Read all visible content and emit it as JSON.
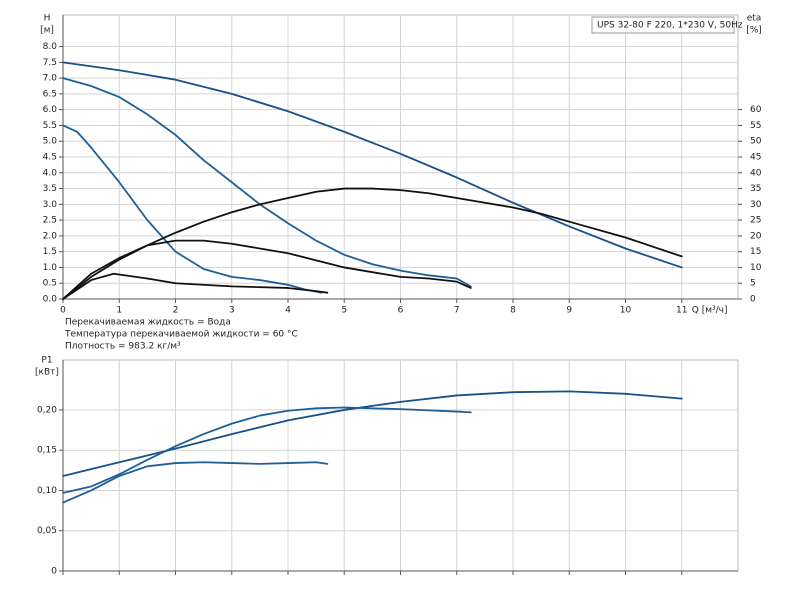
{
  "chart_data": [
    {
      "type": "line",
      "title": "UPS 32-80 F 220, 1*230 V, 50Hz",
      "y_label": "H",
      "y_unit": "[м]",
      "y2_label": "eta",
      "y2_unit": "[%]",
      "x_label": "Q [м³/ч]",
      "annotations": [
        "Перекачиваемая жидкость = Вода",
        "Температура перекачиваемой жидкости = 60 °C",
        "Плотность = 983.2 кг/м³"
      ],
      "xlim": [
        0,
        12
      ],
      "xticks": [
        0,
        1,
        2,
        3,
        4,
        5,
        6,
        7,
        8,
        9,
        10,
        11
      ],
      "ylim": [
        0,
        9
      ],
      "yticks": [
        {
          "value": 0,
          "label": "0.0"
        },
        0.5,
        {
          "value": 1,
          "label": "1.0"
        },
        1.5,
        {
          "value": 2,
          "label": "2.0"
        },
        2.5,
        {
          "value": 3,
          "label": "3.0"
        },
        3.5,
        {
          "value": 4,
          "label": "4.0"
        },
        4.5,
        {
          "value": 5,
          "label": "5.0"
        },
        5.5,
        {
          "value": 6,
          "label": "6.0"
        },
        6.5,
        {
          "value": 7,
          "label": "7.0"
        },
        7.5,
        {
          "value": 8,
          "label": "8.0"
        }
      ],
      "y2lim": [
        0,
        90
      ],
      "y2ticks": [
        0,
        5,
        10,
        15,
        20,
        25,
        30,
        35,
        40,
        45,
        50,
        55,
        60
      ],
      "grid": true,
      "series": [
        {
          "color": "#1b4f8a",
          "x": [
            0,
            1,
            2,
            3,
            4,
            5,
            6,
            7,
            8,
            9,
            10,
            11
          ],
          "values": [
            7.5,
            7.25,
            6.95,
            6.5,
            5.95,
            5.3,
            4.6,
            3.85,
            3.05,
            2.3,
            1.6,
            1.0
          ]
        },
        {
          "color": "#1f5f96",
          "x": [
            0,
            0.5,
            1,
            1.5,
            2,
            2.5,
            3,
            3.5,
            4,
            4.5,
            5,
            5.5,
            6,
            6.5,
            7,
            7.25
          ],
          "values": [
            7.0,
            6.75,
            6.4,
            5.85,
            5.2,
            4.4,
            3.7,
            3.0,
            2.4,
            1.85,
            1.4,
            1.1,
            0.9,
            0.75,
            0.65,
            0.4
          ]
        },
        {
          "color": "#1f5f96",
          "x": [
            0,
            0.25,
            0.5,
            1,
            1.5,
            2,
            2.5,
            3,
            3.5,
            4,
            4.3,
            4.6
          ],
          "values": [
            5.5,
            5.3,
            4.8,
            3.7,
            2.5,
            1.5,
            0.95,
            0.7,
            0.6,
            0.45,
            0.3,
            0.2
          ]
        },
        {
          "color": "#111111",
          "axis": "y2",
          "x": [
            0,
            0.5,
            1,
            1.5,
            2,
            2.5,
            3,
            3.5,
            4,
            4.5,
            5,
            5.5,
            6,
            6.5,
            7,
            7.5,
            8,
            8.5,
            9,
            10,
            11
          ],
          "values": [
            0,
            7,
            12.5,
            17,
            21,
            24.5,
            27.5,
            30,
            32,
            34,
            35,
            35,
            34.5,
            33.5,
            32,
            30.5,
            29,
            27,
            24.5,
            19.5,
            13.5
          ]
        },
        {
          "color": "#111111",
          "axis": "y2",
          "x": [
            0,
            0.5,
            1,
            1.5,
            2,
            2.5,
            3,
            4,
            5,
            6,
            6.5,
            7,
            7.25
          ],
          "values": [
            0,
            8,
            13,
            17,
            18.5,
            18.5,
            17.5,
            14.5,
            10,
            7,
            6.5,
            5.5,
            3.5
          ]
        },
        {
          "color": "#111111",
          "axis": "y2",
          "x": [
            0,
            0.5,
            0.9,
            1.5,
            2,
            3,
            4,
            4.5,
            4.7
          ],
          "values": [
            0,
            6,
            8,
            6.5,
            5,
            4,
            3.5,
            2.5,
            2
          ]
        }
      ]
    },
    {
      "type": "line",
      "y_label": "P1",
      "y_unit": "[кВт]",
      "xlim": [
        0,
        12
      ],
      "ylim": [
        0,
        0.262
      ],
      "yticks": [
        0,
        {
          "value": 0.05,
          "label": "0,05"
        },
        {
          "value": 0.1,
          "label": "0,10"
        },
        {
          "value": 0.15,
          "label": "0,15"
        },
        {
          "value": 0.2,
          "label": "0,20"
        }
      ],
      "grid": true,
      "series": [
        {
          "color": "#1b4f8a",
          "x": [
            0,
            1,
            2,
            3,
            4,
            5,
            6,
            7,
            8,
            9,
            10,
            11
          ],
          "values": [
            0.118,
            0.135,
            0.152,
            0.17,
            0.187,
            0.2,
            0.21,
            0.218,
            0.222,
            0.223,
            0.22,
            0.214
          ]
        },
        {
          "color": "#1f5f96",
          "x": [
            0,
            0.5,
            1,
            1.5,
            2,
            2.5,
            3,
            3.5,
            4,
            4.5,
            5,
            6,
            7,
            7.25
          ],
          "values": [
            0.097,
            0.105,
            0.12,
            0.138,
            0.155,
            0.17,
            0.183,
            0.193,
            0.199,
            0.202,
            0.203,
            0.201,
            0.198,
            0.197
          ]
        },
        {
          "color": "#1f5f96",
          "x": [
            0,
            0.5,
            1,
            1.5,
            2,
            2.5,
            3,
            3.5,
            4,
            4.5,
            4.7
          ],
          "values": [
            0.085,
            0.1,
            0.118,
            0.13,
            0.134,
            0.135,
            0.134,
            0.133,
            0.134,
            0.135,
            0.133
          ]
        }
      ]
    }
  ]
}
